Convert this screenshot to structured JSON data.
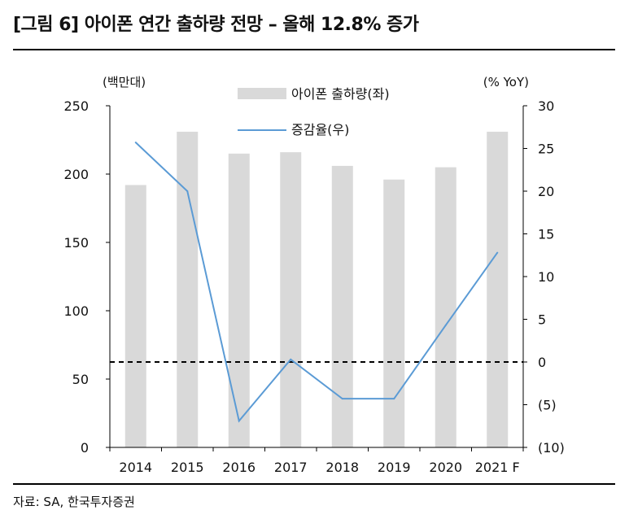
{
  "header": {
    "title": "[그림 6] 아이폰 연간 출하량 전망 – 올해 12.8% 증가"
  },
  "footer": {
    "source": "자료: SA, 한국투자증권"
  },
  "chart_data": {
    "type": "bar+line",
    "categories": [
      "2014",
      "2015",
      "2016",
      "2017",
      "2018",
      "2019",
      "2020",
      "2021F"
    ],
    "x_tick_labels": [
      "2014",
      "2015",
      "2016",
      "2017",
      "2018",
      "2019",
      "2020",
      "2021 F"
    ],
    "series": [
      {
        "name": "아이폰 출하량(좌)",
        "type": "bar",
        "axis": "left",
        "values": [
          192,
          231,
          215,
          216,
          206,
          196,
          205,
          231
        ]
      },
      {
        "name": "증감율(우)",
        "type": "line",
        "axis": "right",
        "values": [
          25.7,
          20.0,
          -6.9,
          0.3,
          -4.3,
          -4.3,
          4.3,
          12.8
        ]
      }
    ],
    "left_axis": {
      "unit": "(백만대)",
      "ylim": [
        0,
        250
      ],
      "ticks": [
        0,
        50,
        100,
        150,
        200,
        250
      ],
      "tick_labels": [
        "0",
        "50",
        "100",
        "150",
        "200",
        "250"
      ]
    },
    "right_axis": {
      "unit": "(% YoY)",
      "ylim": [
        -10,
        30
      ],
      "ticks": [
        -10,
        -5,
        0,
        5,
        10,
        15,
        20,
        25,
        30
      ],
      "tick_labels": [
        "(10)",
        "(5)",
        "0",
        "5",
        "10",
        "15",
        "20",
        "25",
        "30"
      ]
    },
    "reference_line": {
      "axis": "right",
      "value": 0,
      "style": "dashed"
    },
    "legend": {
      "position": "top-center"
    },
    "colors": {
      "bar": "#d9d9d9",
      "line": "#5b9bd5",
      "reference": "#000000"
    }
  }
}
